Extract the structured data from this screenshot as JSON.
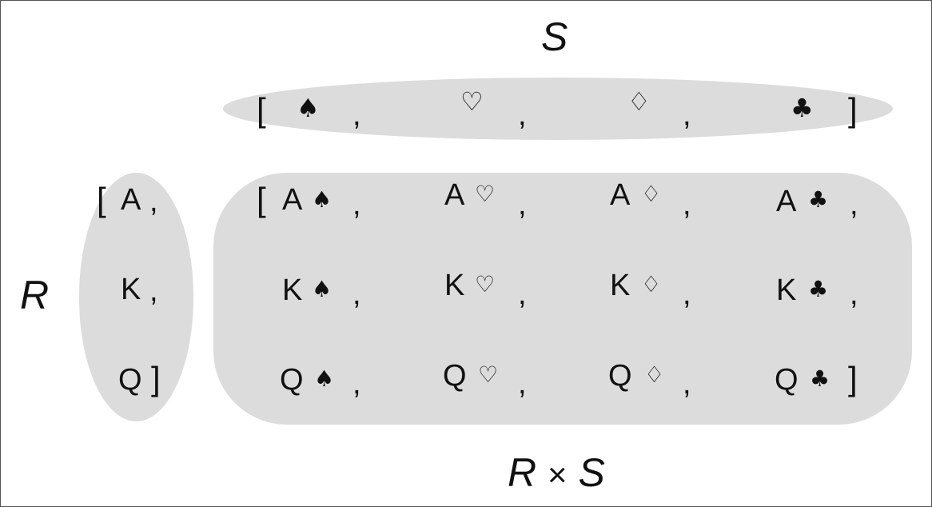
{
  "labels": {
    "s": "S",
    "r": "R",
    "rxs_left": "R",
    "rxs_times": "×",
    "rxs_right": "S"
  },
  "brackets": {
    "open": "[",
    "close": "]",
    "comma": ","
  },
  "set_s": {
    "suits": [
      "♠",
      "♡",
      "♢",
      "♣"
    ]
  },
  "set_r": {
    "ranks": [
      "A",
      "K",
      "Q"
    ]
  },
  "product": {
    "rows": [
      [
        "A♠",
        "A♡",
        "A♢",
        "A♣"
      ],
      [
        "K♠",
        "K♡",
        "K♢",
        "K♣"
      ],
      [
        "Q♠",
        "Q♡",
        "Q♢",
        "Q♣"
      ]
    ],
    "cells": [
      [
        {
          "rank": "A",
          "suit": "♠"
        },
        {
          "rank": "A",
          "suit": "♡"
        },
        {
          "rank": "A",
          "suit": "♢"
        },
        {
          "rank": "A",
          "suit": "♣"
        }
      ],
      [
        {
          "rank": "K",
          "suit": "♠"
        },
        {
          "rank": "K",
          "suit": "♡"
        },
        {
          "rank": "K",
          "suit": "♢"
        },
        {
          "rank": "K",
          "suit": "♣"
        }
      ],
      [
        {
          "rank": "Q",
          "suit": "♠"
        },
        {
          "rank": "Q",
          "suit": "♡"
        },
        {
          "rank": "Q",
          "suit": "♢"
        },
        {
          "rank": "Q",
          "suit": "♣"
        }
      ]
    ]
  },
  "colors": {
    "blob_fill": "#dcdcdc",
    "text": "#111111",
    "frame": "#555555"
  }
}
